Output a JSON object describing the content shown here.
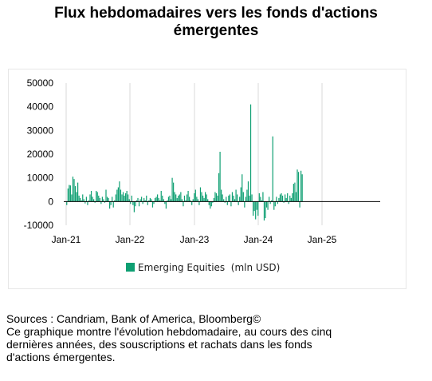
{
  "title_line1": "Flux hebdomadaires vers les fonds d'actions",
  "title_line2": "émergentes",
  "footer": {
    "sources": "Sources : Candriam, Bank of America, Bloomberg©",
    "description_lines": [
      "Ce graphique montre l'évolution hebdomadaire, au cours des cinq",
      "dernières années, des souscriptions et rachats dans les fonds",
      "d'actions émergentes."
    ]
  },
  "colors": {
    "series": "#0e9f72",
    "grid": "#d9d9d9",
    "axis": "#000000"
  },
  "chart_data": {
    "type": "bar",
    "title": "",
    "xlabel": "",
    "ylabel": "",
    "ylim": [
      -10000,
      50000
    ],
    "yticks": [
      -10000,
      0,
      10000,
      20000,
      30000,
      40000,
      50000
    ],
    "ytick_labels": [
      "-10000",
      "0",
      "10000",
      "20000",
      "30000",
      "40000",
      "50000"
    ],
    "xticks": [
      "Jan-21",
      "Jan-22",
      "Jan-23",
      "Jan-24",
      "Jan-25"
    ],
    "x_start": "2021-01",
    "frequency": "weekly",
    "grid": "vertical lines at year starts",
    "legend": "bottom-center",
    "series": [
      {
        "name": "Emerging Equities  (mln USD)",
        "values": [
          -1500,
          5500,
          7000,
          6800,
          3000,
          10500,
          9500,
          6500,
          4000,
          8000,
          2500,
          1500,
          500,
          3000,
          1000,
          -800,
          2000,
          -1500,
          500,
          3000,
          4500,
          2000,
          1000,
          -500,
          4500,
          4000,
          2500,
          1500,
          -1000,
          2000,
          1000,
          -500,
          5000,
          2000,
          1500,
          -3000,
          -1500,
          2000,
          -2500,
          500,
          3000,
          5000,
          6000,
          8500,
          5000,
          3000,
          4000,
          2500,
          3500,
          4500,
          3000,
          1000,
          -1000,
          2500,
          -1500,
          -4500,
          -2000,
          500,
          1500,
          -2000,
          1000,
          2000,
          -1000,
          1500,
          500,
          2500,
          -1500,
          500,
          1500,
          1000,
          -2500,
          -1000,
          1500,
          2000,
          3000,
          1500,
          500,
          4500,
          2500,
          1000,
          -1000,
          -3000,
          500,
          2000,
          2500,
          1000,
          10000,
          8000,
          4000,
          3000,
          1500,
          2500,
          3000,
          4000,
          1000,
          -2000,
          2500,
          500,
          3000,
          4500,
          2000,
          500,
          -1500,
          1000,
          3500,
          5000,
          2000,
          1000,
          -1500,
          6000,
          4000,
          2500,
          1500,
          4000,
          3000,
          1000,
          -1500,
          -3000,
          -2000,
          -500,
          1500,
          4000,
          3500,
          2500,
          12000,
          21000,
          5000,
          3000,
          1000,
          -500,
          2000,
          -1500,
          2500,
          3000,
          -2000,
          4000,
          2500,
          1000,
          5000,
          3000,
          -1500,
          2000,
          6000,
          11500,
          4000,
          -2500,
          2000,
          5000,
          8500,
          2500,
          41000,
          3000,
          -6000,
          -4000,
          -7500,
          -3500,
          -6000,
          3500,
          2000,
          500,
          4000,
          -8000,
          -7000,
          -2500,
          -3500,
          2000,
          -1000,
          500,
          27500,
          -3500,
          -2000,
          2000,
          -1000,
          1500,
          3000,
          3500,
          2500,
          -500,
          3000,
          1500,
          3500,
          -1000,
          2500,
          1500,
          3500,
          7500,
          8000,
          4000,
          13500,
          12500,
          -2500,
          13000,
          11500
        ]
      }
    ]
  }
}
